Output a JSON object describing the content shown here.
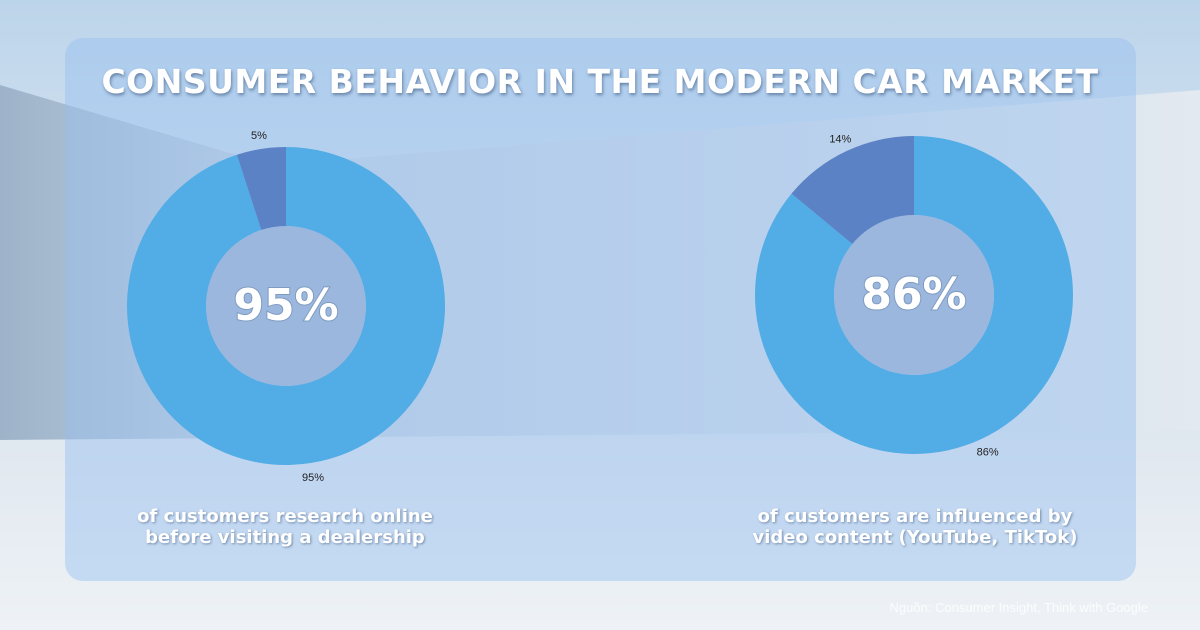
{
  "title": "CONSUMER BEHAVIOR IN THE MODERN CAR MARKET",
  "colors": {
    "primary_slice": "#52ace5",
    "secondary_slice": "#5a82c4",
    "hole": "#9bb7dd"
  },
  "chart_data": [
    {
      "type": "pie",
      "donut": true,
      "center_label": "95%",
      "slices": [
        {
          "label": "95%",
          "value": 95
        },
        {
          "label": "5%",
          "value": 5
        }
      ],
      "caption": [
        "of customers research online",
        "before visiting a dealership"
      ]
    },
    {
      "type": "pie",
      "donut": true,
      "center_label": "86%",
      "slices": [
        {
          "label": "86%",
          "value": 86
        },
        {
          "label": "14%",
          "value": 14
        }
      ],
      "caption": [
        "of customers are influenced by",
        "video content (YouTube, TikTok)"
      ]
    }
  ],
  "source": "Nguồn: Consumer Insight, Think with Google"
}
